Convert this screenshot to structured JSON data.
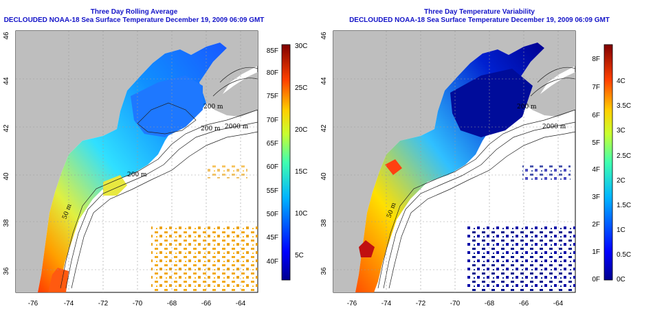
{
  "left_panel": {
    "title": "Three Day Rolling Average",
    "subtitle": "DECLOUDED NOAA-18 Sea Surface Temperature December 19, 2009 06:09 GMT",
    "x_ticks": [
      "-76",
      "-74",
      "-72",
      "-70",
      "-68",
      "-66",
      "-64"
    ],
    "y_ticks": [
      "46",
      "44",
      "42",
      "40",
      "38",
      "36"
    ],
    "depth_labels": [
      "50 m",
      "200 m",
      "200 m",
      "2000 m",
      "200 m"
    ],
    "colorbar": {
      "f_labels": [
        "85F",
        "80F",
        "75F",
        "70F",
        "65F",
        "60F",
        "55F",
        "50F",
        "45F",
        "40F"
      ],
      "c_labels": [
        "30C",
        "25C",
        "20C",
        "15C",
        "10C",
        "5C"
      ]
    }
  },
  "right_panel": {
    "title": "Three Day Temperature Variability",
    "subtitle": "DECLOUDED NOAA-18 Sea Surface Temperature December 19, 2009 06:09 GMT",
    "x_ticks": [
      "-76",
      "-74",
      "-72",
      "-70",
      "-68",
      "-66",
      "-64"
    ],
    "y_ticks": [
      "46",
      "44",
      "42",
      "40",
      "38",
      "36"
    ],
    "depth_labels": [
      "50 m",
      "200 m",
      "2000 m"
    ],
    "colorbar": {
      "f_labels": [
        "8F",
        "7F",
        "6F",
        "5F",
        "4F",
        "3F",
        "2F",
        "1F",
        "0F"
      ],
      "c_labels": [
        "4C",
        "3.5C",
        "3C",
        "2.5C",
        "2C",
        "1.5C",
        "1C",
        "0.5C",
        "0C"
      ]
    }
  },
  "colors": {
    "title": "#1414c8",
    "land": "#bebebe",
    "sea_blank": "#ffffff"
  }
}
